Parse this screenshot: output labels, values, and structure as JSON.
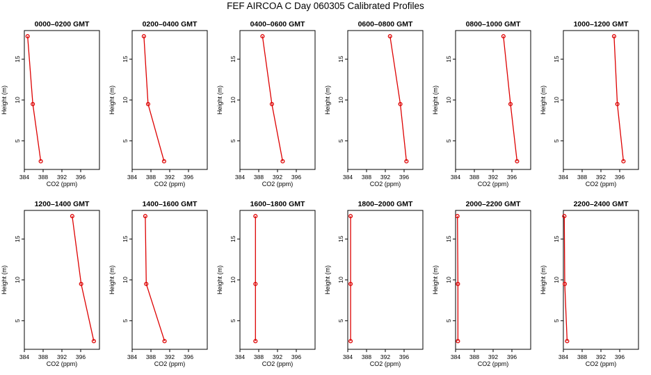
{
  "title": "FEF AIRCOA C  Day 060305  Calibrated Profiles",
  "colors": {
    "profile": "#dd0000",
    "axis": "#000000"
  },
  "chart_data": [
    {
      "type": "line",
      "title": "0000–0200 GMT",
      "xlabel": "CO2 (ppm)",
      "ylabel": "Height (m)",
      "xlim": [
        384,
        400
      ],
      "ylim": [
        1.5,
        18.5
      ],
      "x_ticks": [
        "384",
        "388",
        "392",
        "396"
      ],
      "y_ticks": [
        "5",
        "10",
        "15"
      ],
      "points": [
        {
          "x": 384.7,
          "y": 17.8
        },
        {
          "x": 385.8,
          "y": 9.5
        },
        {
          "x": 387.5,
          "y": 2.5
        }
      ]
    },
    {
      "type": "line",
      "title": "0200–0400 GMT",
      "xlabel": "CO2 (ppm)",
      "ylabel": "Height (m)",
      "xlim": [
        384,
        400
      ],
      "ylim": [
        1.5,
        18.5
      ],
      "x_ticks": [
        "384",
        "388",
        "392",
        "396"
      ],
      "y_ticks": [
        "5",
        "10",
        "15"
      ],
      "points": [
        {
          "x": 386.5,
          "y": 17.8
        },
        {
          "x": 387.4,
          "y": 9.5
        },
        {
          "x": 390.8,
          "y": 2.5
        }
      ]
    },
    {
      "type": "line",
      "title": "0400–0600 GMT",
      "xlabel": "CO2 (ppm)",
      "ylabel": "Height (m)",
      "xlim": [
        384,
        400
      ],
      "ylim": [
        1.5,
        18.5
      ],
      "x_ticks": [
        "384",
        "388",
        "392",
        "396"
      ],
      "y_ticks": [
        "5",
        "10",
        "15"
      ],
      "points": [
        {
          "x": 388.8,
          "y": 17.8
        },
        {
          "x": 390.8,
          "y": 9.5
        },
        {
          "x": 393.1,
          "y": 2.5
        }
      ]
    },
    {
      "type": "line",
      "title": "0600–0800 GMT",
      "xlabel": "CO2 (ppm)",
      "ylabel": "Height (m)",
      "xlim": [
        384,
        400
      ],
      "ylim": [
        1.5,
        18.5
      ],
      "x_ticks": [
        "384",
        "388",
        "392",
        "396"
      ],
      "y_ticks": [
        "5",
        "10",
        "15"
      ],
      "points": [
        {
          "x": 393.0,
          "y": 17.8
        },
        {
          "x": 395.2,
          "y": 9.5
        },
        {
          "x": 396.5,
          "y": 2.5
        }
      ]
    },
    {
      "type": "line",
      "title": "0800–1000 GMT",
      "xlabel": "CO2 (ppm)",
      "ylabel": "Height (m)",
      "xlim": [
        384,
        400
      ],
      "ylim": [
        1.5,
        18.5
      ],
      "x_ticks": [
        "384",
        "388",
        "392",
        "396"
      ],
      "y_ticks": [
        "5",
        "10",
        "15"
      ],
      "points": [
        {
          "x": 394.2,
          "y": 17.8
        },
        {
          "x": 395.7,
          "y": 9.5
        },
        {
          "x": 397.1,
          "y": 2.5
        }
      ]
    },
    {
      "type": "line",
      "title": "1000–1200 GMT",
      "xlabel": "CO2 (ppm)",
      "ylabel": "Height (m)",
      "xlim": [
        384,
        400
      ],
      "ylim": [
        1.5,
        18.5
      ],
      "x_ticks": [
        "384",
        "388",
        "392",
        "396"
      ],
      "y_ticks": [
        "5",
        "10",
        "15"
      ],
      "points": [
        {
          "x": 394.8,
          "y": 17.8
        },
        {
          "x": 395.5,
          "y": 9.5
        },
        {
          "x": 396.8,
          "y": 2.5
        }
      ]
    },
    {
      "type": "line",
      "title": "1200–1400 GMT",
      "xlabel": "CO2 (ppm)",
      "ylabel": "Height (m)",
      "xlim": [
        384,
        400
      ],
      "ylim": [
        1.5,
        18.5
      ],
      "x_ticks": [
        "384",
        "388",
        "392",
        "396"
      ],
      "y_ticks": [
        "5",
        "10",
        "15"
      ],
      "points": [
        {
          "x": 394.2,
          "y": 17.8
        },
        {
          "x": 396.1,
          "y": 9.5
        },
        {
          "x": 398.8,
          "y": 2.5
        }
      ]
    },
    {
      "type": "line",
      "title": "1400–1600 GMT",
      "xlabel": "CO2 (ppm)",
      "ylabel": "Height (m)",
      "xlim": [
        384,
        400
      ],
      "ylim": [
        1.5,
        18.5
      ],
      "x_ticks": [
        "384",
        "388",
        "392",
        "396"
      ],
      "y_ticks": [
        "5",
        "10",
        "15"
      ],
      "points": [
        {
          "x": 386.8,
          "y": 17.8
        },
        {
          "x": 387.0,
          "y": 9.5
        },
        {
          "x": 390.9,
          "y": 2.5
        }
      ]
    },
    {
      "type": "line",
      "title": "1600–1800 GMT",
      "xlabel": "CO2 (ppm)",
      "ylabel": "Height (m)",
      "xlim": [
        384,
        400
      ],
      "ylim": [
        1.5,
        18.5
      ],
      "x_ticks": [
        "384",
        "388",
        "392",
        "396"
      ],
      "y_ticks": [
        "5",
        "10",
        "15"
      ],
      "points": [
        {
          "x": 387.3,
          "y": 17.8
        },
        {
          "x": 387.3,
          "y": 9.5
        },
        {
          "x": 387.3,
          "y": 2.5
        }
      ]
    },
    {
      "type": "line",
      "title": "1800–2000 GMT",
      "xlabel": "CO2 (ppm)",
      "ylabel": "Height (m)",
      "xlim": [
        384,
        400
      ],
      "ylim": [
        1.5,
        18.5
      ],
      "x_ticks": [
        "384",
        "388",
        "392",
        "396"
      ],
      "y_ticks": [
        "5",
        "10",
        "15"
      ],
      "points": [
        {
          "x": 384.6,
          "y": 17.8
        },
        {
          "x": 384.6,
          "y": 9.5
        },
        {
          "x": 384.6,
          "y": 2.5
        }
      ]
    },
    {
      "type": "line",
      "title": "2000–2200 GMT",
      "xlabel": "CO2 (ppm)",
      "ylabel": "Height (m)",
      "xlim": [
        384,
        400
      ],
      "ylim": [
        1.5,
        18.5
      ],
      "x_ticks": [
        "384",
        "388",
        "392",
        "396"
      ],
      "y_ticks": [
        "5",
        "10",
        "15"
      ],
      "points": [
        {
          "x": 384.4,
          "y": 17.8
        },
        {
          "x": 384.5,
          "y": 9.5
        },
        {
          "x": 384.5,
          "y": 2.5
        }
      ]
    },
    {
      "type": "line",
      "title": "2200–2400 GMT",
      "xlabel": "CO2 (ppm)",
      "ylabel": "Height (m)",
      "xlim": [
        384,
        400
      ],
      "ylim": [
        1.5,
        18.5
      ],
      "x_ticks": [
        "384",
        "388",
        "392",
        "396"
      ],
      "y_ticks": [
        "5",
        "10",
        "15"
      ],
      "points": [
        {
          "x": 384.2,
          "y": 17.8
        },
        {
          "x": 384.3,
          "y": 9.5
        },
        {
          "x": 384.8,
          "y": 2.5
        }
      ]
    }
  ]
}
